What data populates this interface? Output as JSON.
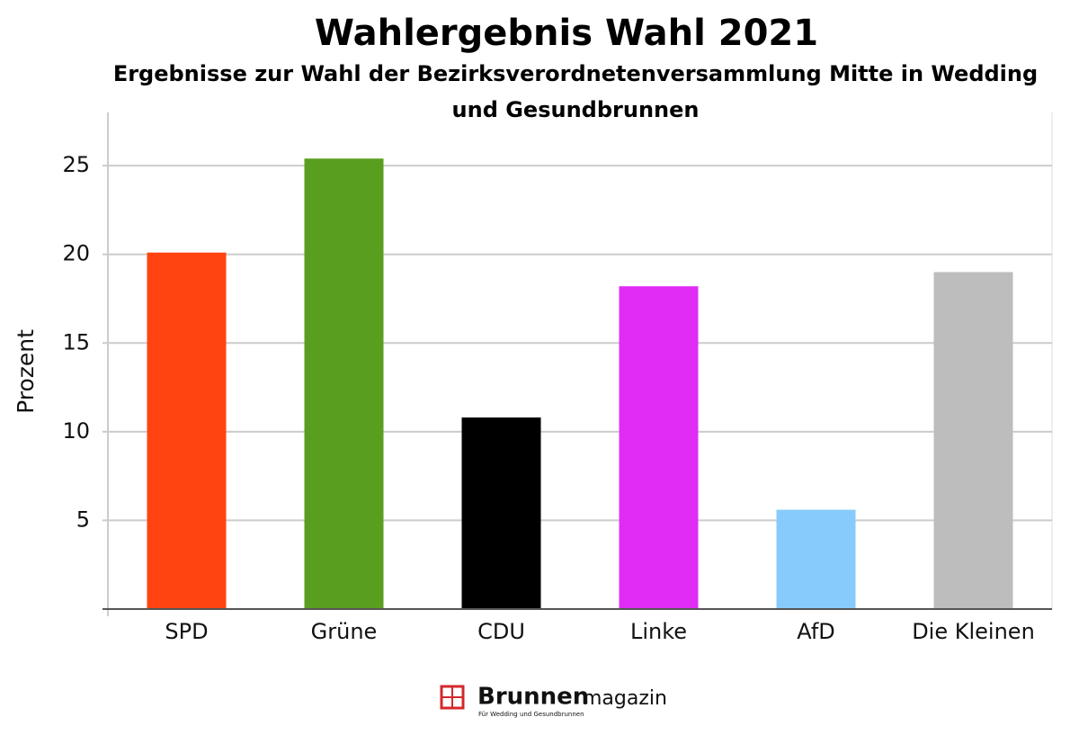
{
  "chart_data": {
    "type": "bar",
    "title": "Wahlergebnis Wahl 2021",
    "subtitle": "Ergebnisse zur Wahl der Bezirksverordnetenversammlung Mitte in Wedding und Gesundbrunnen",
    "y_label": "Prozent",
    "categories": [
      "SPD",
      "Grüne",
      "CDU",
      "Linke",
      "AfD",
      "Die Kleinen"
    ],
    "values": [
      20.1,
      25.4,
      10.8,
      18.2,
      5.6,
      19.0
    ],
    "colors": [
      "#ff4411",
      "#5a9e1f",
      "#000000",
      "#e12cf5",
      "#87cbfc",
      "#bdbdbd"
    ],
    "ylim": [
      0,
      28
    ],
    "yticks": [
      5,
      10,
      15,
      20,
      25
    ],
    "grid": true,
    "logo": {
      "bold": "Brunnen",
      "light": "magazin",
      "tagline": "Für Wedding und Gesundbrunnen"
    }
  }
}
